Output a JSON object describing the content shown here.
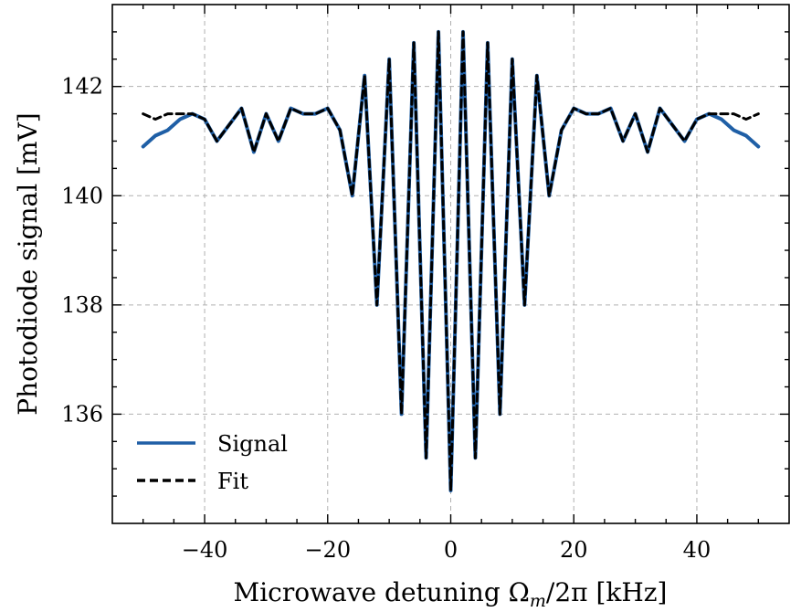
{
  "chart_data": {
    "type": "line",
    "xlabel": "Microwave detuning Ωm/2π [kHz]",
    "xlabel_parts": {
      "main": "Microwave detuning Ω",
      "sub": "m",
      "rest": "/2π [kHz]"
    },
    "ylabel": "Photodiode signal [mV]",
    "xlim": [
      -55,
      55
    ],
    "ylim": [
      134.0,
      143.5
    ],
    "x_ticks": [
      -40,
      -20,
      0,
      20,
      40
    ],
    "x_tick_labels": [
      "−40",
      "−20",
      "0",
      "20",
      "40"
    ],
    "y_ticks": [
      136,
      138,
      140,
      142
    ],
    "y_tick_labels": [
      "136",
      "138",
      "140",
      "142"
    ],
    "grid": true,
    "legend": {
      "placement": "lower-left",
      "entries": [
        "Signal",
        "Fit"
      ]
    },
    "series": [
      {
        "name": "Signal",
        "color": "#1f5fa6",
        "style": "solid",
        "x": [
          -50,
          -48,
          -46,
          -44,
          -42,
          -40,
          -38,
          -36,
          -34,
          -32,
          -30,
          -28,
          -26,
          -24,
          -22,
          -20,
          -18,
          -16,
          -14,
          -12,
          -10,
          -8,
          -6,
          -4,
          -2,
          0,
          2,
          4,
          6,
          8,
          10,
          12,
          14,
          16,
          18,
          20,
          22,
          24,
          26,
          28,
          30,
          32,
          34,
          36,
          38,
          40,
          42,
          44,
          46,
          48,
          50
        ],
        "y": [
          140.9,
          141.1,
          141.2,
          141.4,
          141.5,
          141.4,
          141.0,
          141.3,
          141.6,
          140.8,
          141.5,
          141.0,
          141.6,
          141.5,
          141.5,
          141.6,
          141.2,
          140.0,
          142.2,
          138.0,
          142.5,
          136.0,
          142.8,
          135.2,
          143.0,
          134.6,
          143.0,
          135.2,
          142.8,
          136.0,
          142.5,
          138.0,
          142.2,
          140.0,
          141.2,
          141.6,
          141.5,
          141.5,
          141.6,
          141.0,
          141.5,
          140.8,
          141.6,
          141.3,
          141.0,
          141.4,
          141.5,
          141.4,
          141.2,
          141.1,
          140.9
        ]
      },
      {
        "name": "Fit",
        "color": "#000000",
        "style": "dashed",
        "x": [
          -50,
          -48,
          -46,
          -44,
          -42,
          -40,
          -38,
          -36,
          -34,
          -32,
          -30,
          -28,
          -26,
          -24,
          -22,
          -20,
          -18,
          -16,
          -14,
          -12,
          -10,
          -8,
          -6,
          -4,
          -2,
          0,
          2,
          4,
          6,
          8,
          10,
          12,
          14,
          16,
          18,
          20,
          22,
          24,
          26,
          28,
          30,
          32,
          34,
          36,
          38,
          40,
          42,
          44,
          46,
          48,
          50
        ],
        "y": [
          141.5,
          141.4,
          141.5,
          141.5,
          141.5,
          141.4,
          141.0,
          141.3,
          141.6,
          140.8,
          141.5,
          141.0,
          141.6,
          141.5,
          141.5,
          141.6,
          141.2,
          140.0,
          142.2,
          138.0,
          142.5,
          136.0,
          142.8,
          135.2,
          143.0,
          134.6,
          143.0,
          135.2,
          142.8,
          136.0,
          142.5,
          138.0,
          142.2,
          140.0,
          141.2,
          141.6,
          141.5,
          141.5,
          141.6,
          141.0,
          141.5,
          140.8,
          141.6,
          141.3,
          141.0,
          141.4,
          141.5,
          141.5,
          141.5,
          141.4,
          141.5
        ]
      }
    ]
  }
}
